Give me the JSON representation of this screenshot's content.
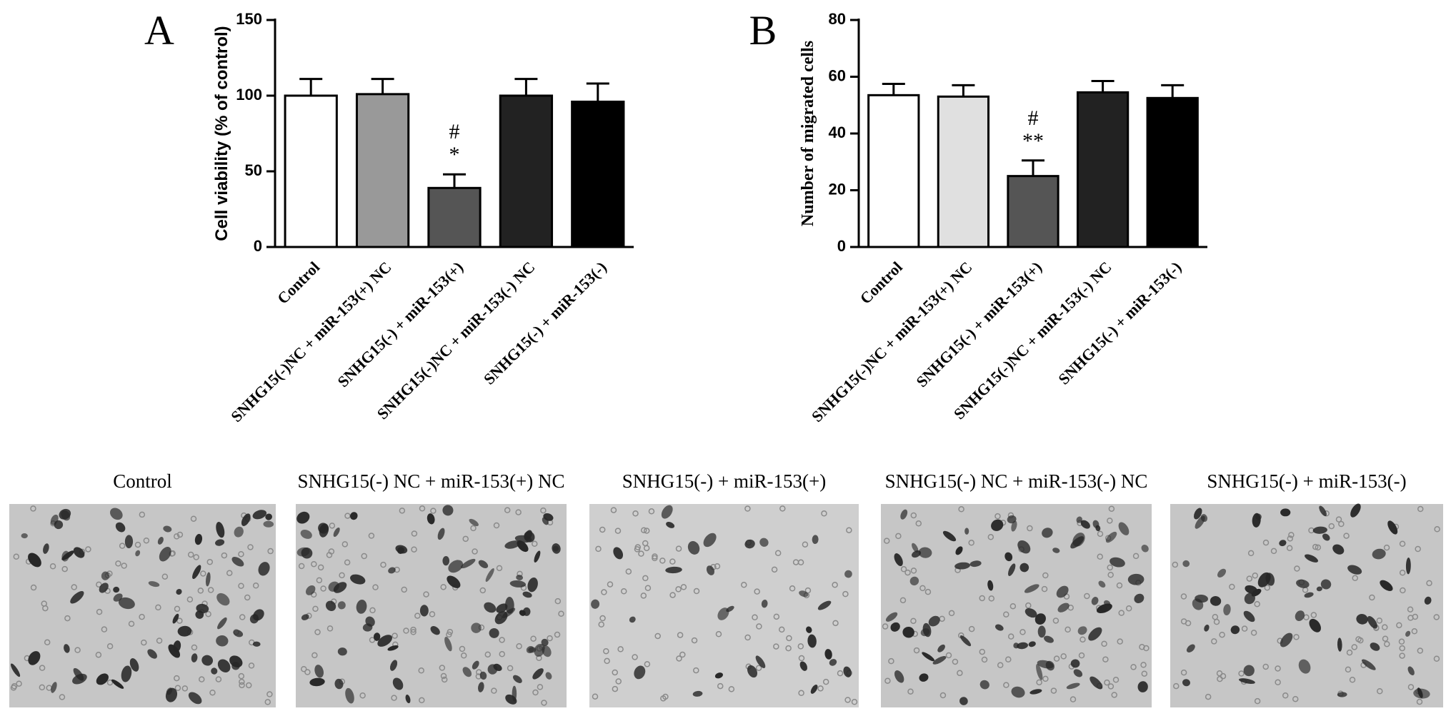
{
  "chart_data": [
    {
      "type": "bar",
      "label": "A",
      "ylabel": "Cell viability (% of control)",
      "categories": [
        "Control",
        "SNHG15(-)NC + miR-153(+) NC",
        "SNHG15(-) + miR-153(+)",
        "SNHG15(-)NC + miR-153(-) NC",
        "SNHG15(-) + miR-153(-)"
      ],
      "values": [
        100,
        101,
        39,
        100,
        96
      ],
      "errors": [
        11,
        10,
        9,
        11,
        12
      ],
      "colors": [
        "#ffffff",
        "#999999",
        "#555555",
        "#222222",
        "#000000"
      ],
      "annotations": [
        null,
        null,
        [
          "#",
          "*"
        ],
        null,
        null
      ],
      "ylim": [
        0,
        150
      ],
      "yticks": [
        0,
        50,
        100,
        150
      ]
    },
    {
      "type": "bar",
      "label": "B",
      "ylabel": "Number of migrated cells",
      "categories": [
        "Control",
        "SNHG15(-)NC + miR-153(+) NC",
        "SNHG15(-) + miR-153(+)",
        "SNHG15(-)NC + miR-153(-) NC",
        "SNHG15(-) + miR-153(-)"
      ],
      "values": [
        53.5,
        53,
        25,
        54.5,
        52.5
      ],
      "errors": [
        4,
        4,
        5.5,
        4,
        4.5
      ],
      "colors": [
        "#ffffff",
        "#e0e0e0",
        "#555555",
        "#222222",
        "#000000"
      ],
      "annotations": [
        null,
        null,
        [
          "#",
          "**"
        ],
        null,
        null
      ],
      "ylim": [
        0,
        80
      ],
      "yticks": [
        0,
        20,
        40,
        60,
        80
      ]
    }
  ],
  "micrographs": [
    {
      "caption": "Control"
    },
    {
      "caption": "SNHG15(-) NC + miR-153(+) NC"
    },
    {
      "caption": "SNHG15(-) + miR-153(+)"
    },
    {
      "caption": "SNHG15(-) NC + miR-153(-) NC"
    },
    {
      "caption": "SNHG15(-) + miR-153(-)"
    }
  ]
}
